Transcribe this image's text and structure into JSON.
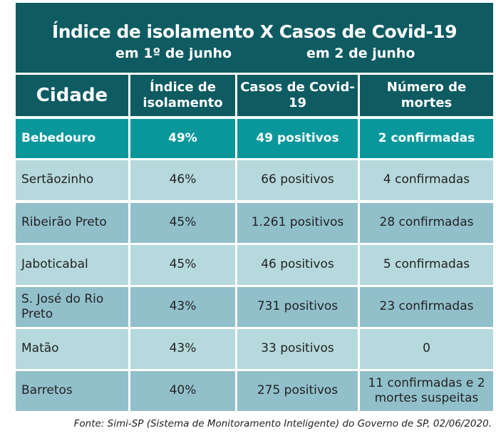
{
  "title": {
    "main": "Índice de isolamento X Casos de Covid-19",
    "left_sub": "em 1º de junho",
    "right_sub": "em 2 de junho"
  },
  "headers": [
    "Cidade",
    "Índice de isolamento",
    "Casos de Covid-19",
    "Número de mortes"
  ],
  "rows": [
    [
      "Bebedouro",
      "49%",
      "49 positivos",
      "2 confirmadas"
    ],
    [
      "Sertãozinho",
      "46%",
      "66 positivos",
      "4 confirmadas"
    ],
    [
      "Ribeirão Preto",
      "45%",
      "1.261 positivos",
      "28 confirmadas"
    ],
    [
      "Jaboticabal",
      "45%",
      "46 positivos",
      "5 confirmadas"
    ],
    [
      "S. José do Rio Preto",
      "43%",
      "731 positivos",
      "23 confirmadas"
    ],
    [
      "Matão",
      "43%",
      "33 positivos",
      "0"
    ],
    [
      "Barretos",
      "40%",
      "275 positivos",
      "11 confirmadas e 2 mortes suspeitas"
    ]
  ],
  "source": "Fonte: Simi-SP (Sistema de Monitoramento Inteligente) do Governo de SP, 02/06/2020.",
  "colors": {
    "dark": "#0e5b62",
    "highlight": "#0a979b",
    "light_a": "#b6d9dd",
    "light_b": "#91c0cb"
  }
}
